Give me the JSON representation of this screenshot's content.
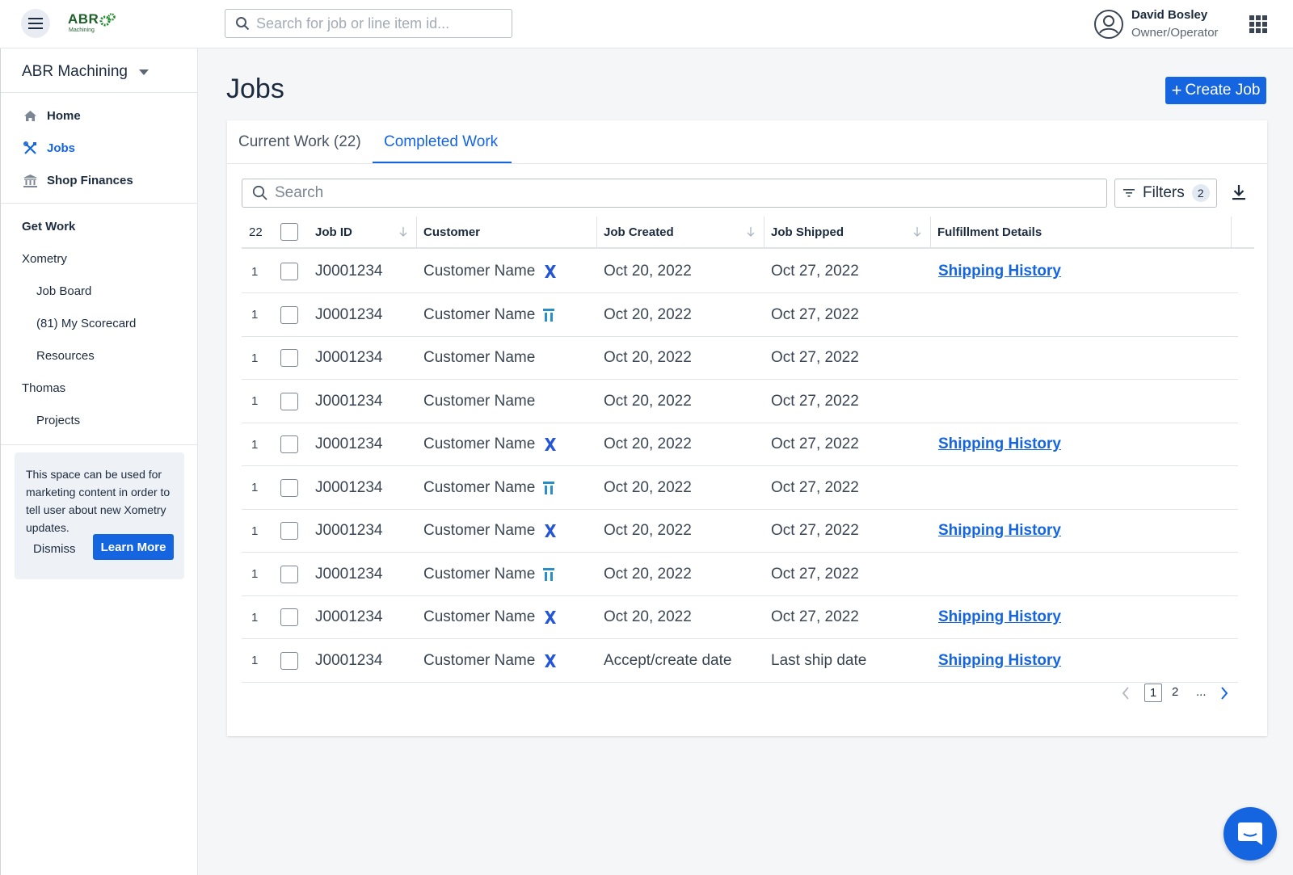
{
  "header": {
    "logo_text": "ABR",
    "logo_sub": "Machining",
    "search_placeholder": "Search for job or line item id...",
    "user_name": "David Bosley",
    "user_role": "Owner/Operator"
  },
  "sidebar": {
    "company": "ABR Machining",
    "nav": [
      {
        "label": "Home",
        "icon": "home-icon"
      },
      {
        "label": "Jobs",
        "icon": "tools-icon",
        "active": true
      },
      {
        "label": "Shop Finances",
        "icon": "bank-icon"
      }
    ],
    "get_work": "Get Work",
    "xometry": "Xometry",
    "xometry_items": [
      "Job Board",
      "(81) My Scorecard",
      "Resources"
    ],
    "thomas": "Thomas",
    "thomas_items": [
      "Projects"
    ],
    "promo": {
      "text": "This space can be used for marketing content in order to tell user about new Xometry updates.",
      "dismiss": "Dismiss",
      "learn_more": "Learn More"
    }
  },
  "main": {
    "title": "Jobs",
    "create_button": "Create Job",
    "tabs": [
      "Current Work (22)",
      "Completed Work"
    ],
    "active_tab": 1,
    "search_placeholder": "Search",
    "filters_label": "Filters",
    "filters_count": "2",
    "table": {
      "count": "22",
      "headers": {
        "job_id": "Job ID",
        "customer": "Customer",
        "job_created": "Job Created",
        "job_shipped": "Job Shipped",
        "fulfillment": "Fulfillment Details"
      },
      "rows": [
        {
          "qty": "1",
          "job_id": "J0001234",
          "customer": "Customer Name",
          "source": "xometry",
          "created": "Oct 20, 2022",
          "shipped": "Oct 27, 2022",
          "fulfillment": "Shipping History"
        },
        {
          "qty": "1",
          "job_id": "J0001234",
          "customer": "Customer Name",
          "source": "thomas",
          "created": "Oct 20, 2022",
          "shipped": "Oct 27, 2022",
          "fulfillment": ""
        },
        {
          "qty": "1",
          "job_id": "J0001234",
          "customer": "Customer Name",
          "source": "",
          "created": "Oct 20, 2022",
          "shipped": "Oct 27, 2022",
          "fulfillment": ""
        },
        {
          "qty": "1",
          "job_id": "J0001234",
          "customer": "Customer Name",
          "source": "",
          "created": "Oct 20, 2022",
          "shipped": "Oct 27, 2022",
          "fulfillment": ""
        },
        {
          "qty": "1",
          "job_id": "J0001234",
          "customer": "Customer Name",
          "source": "xometry",
          "created": "Oct 20, 2022",
          "shipped": "Oct 27, 2022",
          "fulfillment": "Shipping History"
        },
        {
          "qty": "1",
          "job_id": "J0001234",
          "customer": "Customer Name",
          "source": "thomas",
          "created": "Oct 20, 2022",
          "shipped": "Oct 27, 2022",
          "fulfillment": ""
        },
        {
          "qty": "1",
          "job_id": "J0001234",
          "customer": "Customer Name",
          "source": "xometry",
          "created": "Oct 20, 2022",
          "shipped": "Oct 27, 2022",
          "fulfillment": "Shipping History"
        },
        {
          "qty": "1",
          "job_id": "J0001234",
          "customer": "Customer Name",
          "source": "thomas",
          "created": "Oct 20, 2022",
          "shipped": "Oct 27, 2022",
          "fulfillment": ""
        },
        {
          "qty": "1",
          "job_id": "J0001234",
          "customer": "Customer Name",
          "source": "xometry",
          "created": "Oct 20, 2022",
          "shipped": "Oct 27, 2022",
          "fulfillment": "Shipping History"
        },
        {
          "qty": "1",
          "job_id": "J0001234",
          "customer": "Customer Name",
          "source": "xometry",
          "created": "Accept/create date",
          "shipped": "Last ship date",
          "fulfillment": "Shipping History"
        }
      ]
    },
    "pagination": {
      "current": "1",
      "next_page": "2",
      "ellipsis": "..."
    }
  },
  "colors": {
    "accent": "#1565e0",
    "text": "#1d2b3f",
    "logo_green": "#1f5f2a"
  }
}
